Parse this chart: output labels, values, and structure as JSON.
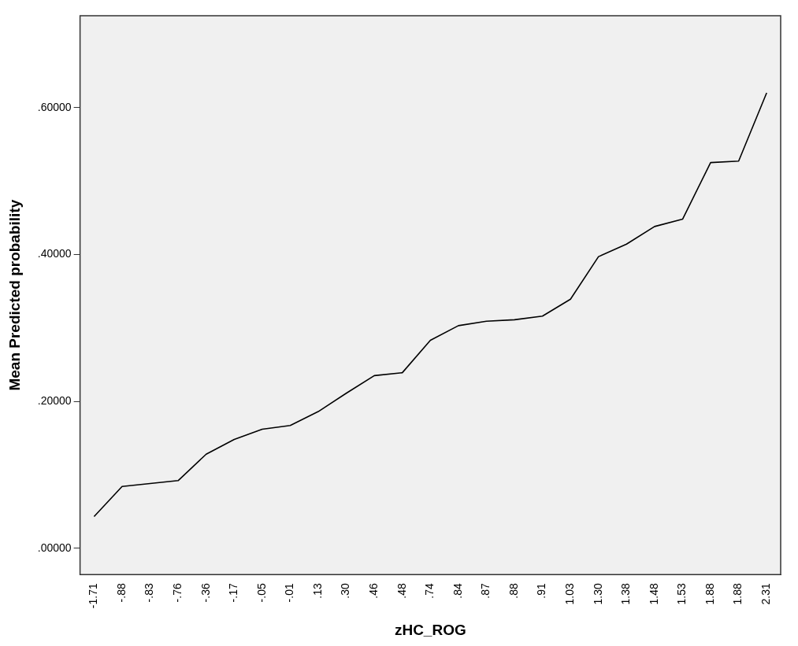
{
  "chart_data": {
    "type": "line",
    "xlabel": "zHC_ROG",
    "ylabel": "Mean Predicted probability",
    "categories": [
      "-1.71",
      "-.88",
      "-.83",
      "-.76",
      "-.36",
      "-.17",
      "-.05",
      "-.01",
      ".13",
      ".30",
      ".46",
      ".48",
      ".74",
      ".84",
      ".87",
      ".88",
      ".91",
      "1.03",
      "1.30",
      "1.38",
      "1.48",
      "1.53",
      "1.88",
      "1.88",
      "2.31"
    ],
    "series": [
      {
        "color": "#000000",
        "values": [
          0.043,
          0.084,
          0.088,
          0.092,
          0.128,
          0.148,
          0.162,
          0.167,
          0.186,
          0.211,
          0.235,
          0.239,
          0.283,
          0.303,
          0.309,
          0.311,
          0.316,
          0.339,
          0.397,
          0.414,
          0.438,
          0.448,
          0.525,
          0.527,
          0.62
        ]
      }
    ],
    "ylim": [
      -0.036,
      0.725
    ],
    "yticks": [
      {
        "value": 0,
        "label": ".00000"
      },
      {
        "value": 0.2,
        "label": ".20000"
      },
      {
        "value": 0.4,
        "label": ".40000"
      },
      {
        "value": 0.6,
        "label": ".60000"
      }
    ],
    "grid": false,
    "legend": false,
    "marker": "none",
    "line_style": "solid"
  }
}
